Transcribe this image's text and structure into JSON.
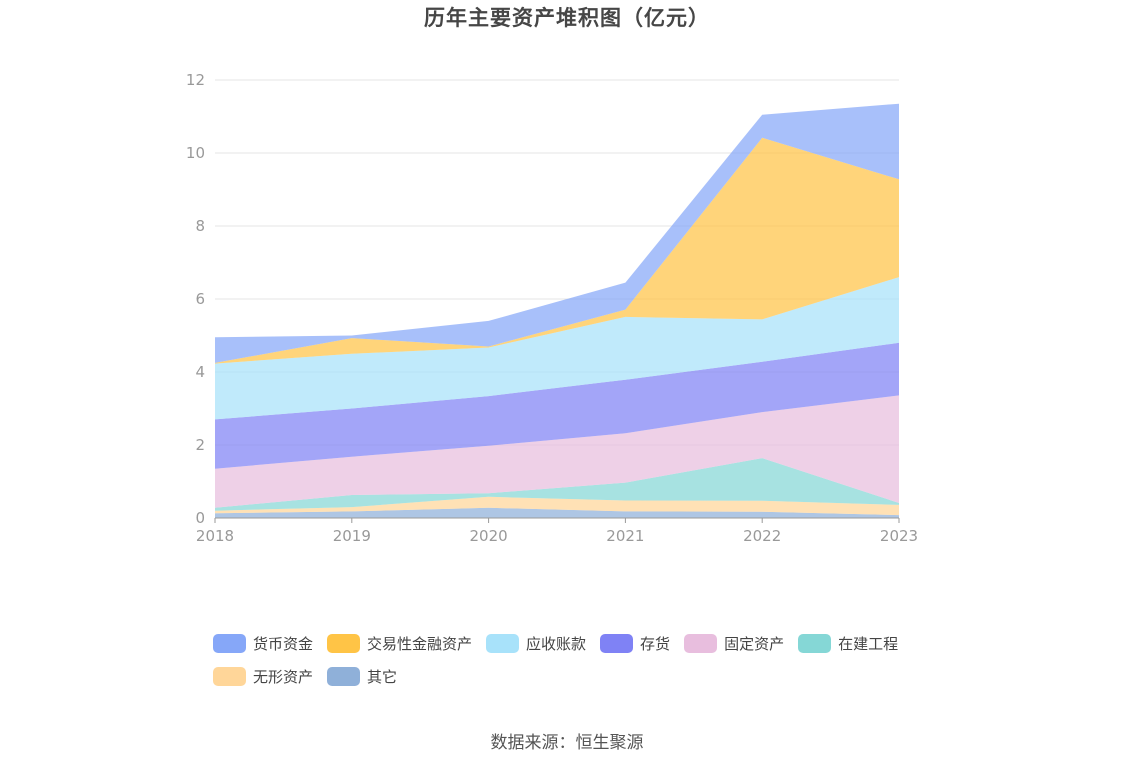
{
  "chart_data": {
    "type": "area",
    "title": "历年主要资产堆积图（亿元）",
    "stacked": true,
    "x": [
      "2018",
      "2019",
      "2020",
      "2021",
      "2022",
      "2023"
    ],
    "ylim": [
      0,
      12
    ],
    "yticks": [
      "0",
      "2",
      "4",
      "6",
      "8",
      "10",
      "12"
    ],
    "grid": true,
    "legend_position": "bottom",
    "series": [
      {
        "name": "其它",
        "color": "#8fb0d9",
        "values": [
          0.13,
          0.18,
          0.28,
          0.18,
          0.17,
          0.08
        ]
      },
      {
        "name": "无形资产",
        "color": "#ffd699",
        "values": [
          0.07,
          0.12,
          0.3,
          0.3,
          0.3,
          0.28
        ]
      },
      {
        "name": "在建工程",
        "color": "#85d7d6",
        "values": [
          0.08,
          0.33,
          0.1,
          0.49,
          1.17,
          0.05
        ]
      },
      {
        "name": "固定资产",
        "color": "#e8bede",
        "values": [
          1.07,
          1.05,
          1.3,
          1.35,
          1.26,
          2.95
        ]
      },
      {
        "name": "存货",
        "color": "#7f82f5",
        "values": [
          1.35,
          1.32,
          1.36,
          1.47,
          1.38,
          1.44
        ]
      },
      {
        "name": "应收账款",
        "color": "#a8e2fa",
        "values": [
          1.53,
          1.5,
          1.33,
          1.72,
          1.16,
          1.8
        ]
      },
      {
        "name": "交易性金融资产",
        "color": "#ffc446",
        "values": [
          0.02,
          0.43,
          0.03,
          0.2,
          4.98,
          2.68
        ]
      },
      {
        "name": "货币资金",
        "color": "#86a7f8",
        "values": [
          0.7,
          0.07,
          0.7,
          0.74,
          0.63,
          2.07
        ]
      }
    ]
  },
  "legend_rows": [
    [
      {
        "label": "货币资金",
        "color": "#86a7f8"
      },
      {
        "label": "交易性金融资产",
        "color": "#ffc446"
      },
      {
        "label": "应收账款",
        "color": "#a8e2fa"
      },
      {
        "label": "存货",
        "color": "#7f82f5"
      },
      {
        "label": "固定资产",
        "color": "#e8bede"
      },
      {
        "label": "在建工程",
        "color": "#85d7d6"
      }
    ],
    [
      {
        "label": "无形资产",
        "color": "#ffd699"
      },
      {
        "label": "其它",
        "color": "#8fb0d9"
      }
    ]
  ],
  "source": "数据来源：恒生聚源"
}
